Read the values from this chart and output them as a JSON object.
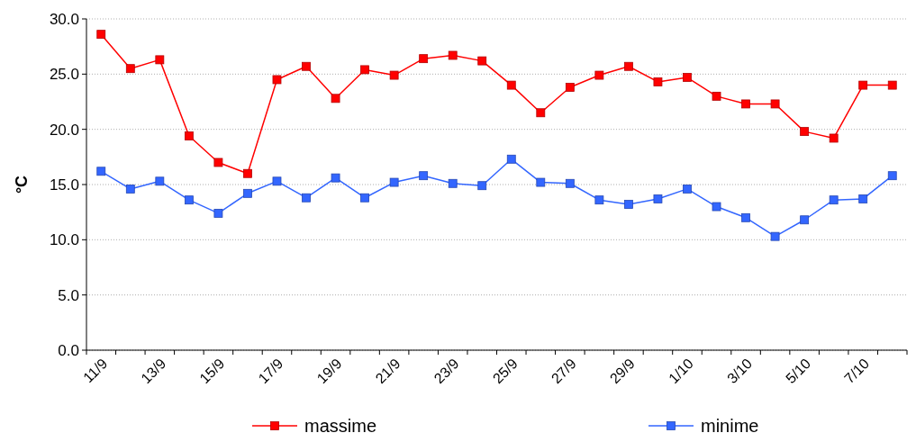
{
  "chart_data": {
    "type": "line",
    "ylabel": "°C",
    "categories": [
      "11/9",
      null,
      "13/9",
      null,
      "15/9",
      null,
      "17/9",
      null,
      "19/9",
      null,
      "21/9",
      null,
      "23/9",
      null,
      "25/9",
      null,
      "27/9",
      null,
      "29/9",
      null,
      "1/10",
      null,
      "3/10",
      null,
      "5/10",
      null,
      "7/10",
      null
    ],
    "series": [
      {
        "name": "massime",
        "color": "#ff0000",
        "values": [
          28.6,
          25.5,
          26.3,
          19.4,
          17.0,
          16.0,
          24.5,
          25.7,
          22.8,
          25.4,
          24.9,
          26.4,
          26.7,
          26.2,
          24.0,
          21.5,
          23.8,
          24.9,
          25.7,
          24.3,
          24.7,
          23.0,
          22.3,
          22.3,
          19.8,
          19.2,
          24.0,
          24.0
        ]
      },
      {
        "name": "minime",
        "color": "#3366ff",
        "values": [
          16.2,
          14.6,
          15.3,
          13.6,
          12.4,
          14.2,
          15.3,
          13.8,
          15.6,
          13.8,
          15.2,
          15.8,
          15.1,
          14.9,
          17.3,
          15.2,
          15.1,
          13.6,
          13.2,
          13.7,
          14.6,
          13.0,
          12.0,
          10.3,
          11.8,
          13.6,
          13.7,
          15.8
        ]
      }
    ],
    "ylim": [
      0,
      30
    ],
    "yticks": [
      {
        "value": 0,
        "label": "0.0"
      },
      {
        "value": 5,
        "label": "5.0"
      },
      {
        "value": 10,
        "label": "10.0"
      },
      {
        "value": 15,
        "label": "15.0"
      },
      {
        "value": 20,
        "label": "20.0"
      },
      {
        "value": 25,
        "label": "25.0"
      },
      {
        "value": 30,
        "label": "30.0"
      }
    ],
    "grid": "y",
    "legend": "bottom",
    "marker": "square",
    "line_style": "solid"
  }
}
